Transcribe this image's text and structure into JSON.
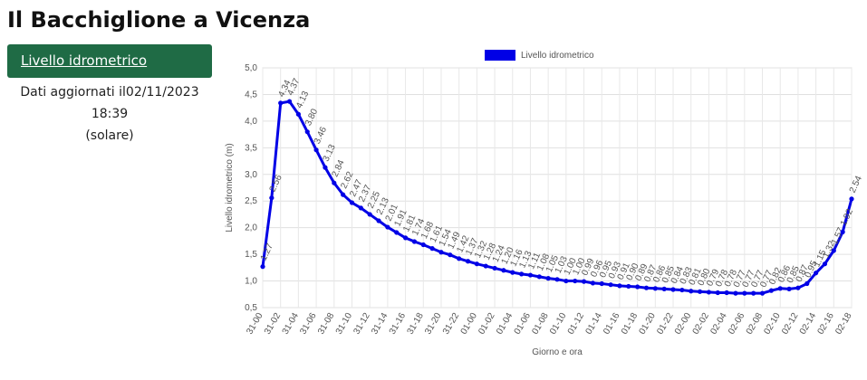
{
  "header": {
    "title": "Il Bacchiglione a Vicenza"
  },
  "sidebar": {
    "button": "Livello idrometrico",
    "updated": "Dati aggiornati il02/11/2023 18:39",
    "note": "(solare)"
  },
  "chart_data": {
    "type": "line",
    "xlabel": "Giorno e ora",
    "ylabel": "Livello idrometrico (m)",
    "legend": "top",
    "categories": [
      "31-00",
      null,
      "31-02",
      null,
      "31-04",
      null,
      "31-06",
      null,
      "31-08",
      null,
      "31-10",
      null,
      "31-12",
      null,
      "31-14",
      null,
      "31-16",
      null,
      "31-18",
      null,
      "31-20",
      null,
      "31-22",
      null,
      "01-00",
      null,
      "01-02",
      null,
      "01-04",
      null,
      "01-06",
      null,
      "01-08",
      null,
      "01-10",
      null,
      "01-12",
      null,
      "01-14",
      null,
      "01-16",
      null,
      "01-18",
      null,
      "01-20",
      null,
      "01-22",
      null,
      "02-00",
      null,
      "02-02",
      null,
      "02-04",
      null,
      "02-06",
      null,
      "02-08",
      null,
      "02-10",
      null,
      "02-12",
      null,
      "02-14",
      null,
      "02-16",
      null,
      "02-18"
    ],
    "series": [
      {
        "name": "Livello idrometrico",
        "color": "#0000e6",
        "values": [
          1.27,
          2.56,
          4.34,
          4.37,
          4.13,
          3.8,
          3.46,
          3.13,
          2.84,
          2.62,
          2.47,
          2.37,
          2.25,
          2.13,
          2.01,
          1.91,
          1.81,
          1.74,
          1.68,
          1.61,
          1.54,
          1.49,
          1.42,
          1.37,
          1.32,
          1.28,
          1.24,
          1.2,
          1.16,
          1.13,
          1.11,
          1.08,
          1.05,
          1.03,
          1,
          1,
          0.99,
          0.96,
          0.95,
          0.93,
          0.91,
          0.9,
          0.89,
          0.87,
          0.86,
          0.85,
          0.84,
          0.83,
          0.81,
          0.8,
          0.79,
          0.78,
          0.78,
          0.77,
          0.77,
          0.77,
          0.77,
          0.82,
          0.86,
          0.85,
          0.87,
          0.95,
          1.15,
          1.32,
          1.57,
          1.92,
          2.54
        ],
        "value_labels": [
          "1.27",
          "2.56",
          "4.34",
          "4.37",
          "4.13",
          "3.80",
          "3.46",
          "3.13",
          "2.84",
          "2.62",
          "2.47",
          "2.37",
          "2.25",
          "2.13",
          "2.01",
          "1.91",
          "1.81",
          "1.74",
          "1.68",
          "1.61",
          "1.54",
          "1.49",
          "1.42",
          "1.37",
          "1.32",
          "1.28",
          "1.24",
          "1.20",
          "1.16",
          "1.13",
          "1.11",
          "1.08",
          "1.05",
          "1.03",
          "1.00",
          "1.00",
          "0.99",
          "0.96",
          "0.95",
          "0.93",
          "0.91",
          "0.90",
          "0.89",
          "0.87",
          "0.86",
          "0.85",
          "0.84",
          "0.83",
          "0.81",
          "0.80",
          "0.79",
          "0.78",
          "0.78",
          "0.77",
          "0.77",
          "0.77",
          "0.77",
          "0.82",
          "0.86",
          "0.85",
          "0.87",
          "0.95",
          "1.15",
          "1.32",
          "1.57",
          "1.92",
          "2.54"
        ]
      }
    ],
    "ylim": [
      0.5,
      5
    ],
    "yticks": [
      {
        "value": 0.5,
        "label": "0,5"
      },
      {
        "value": 1,
        "label": "1,0"
      },
      {
        "value": 1.5,
        "label": "1,5"
      },
      {
        "value": 2,
        "label": "2,0"
      },
      {
        "value": 2.5,
        "label": "2,5"
      },
      {
        "value": 3,
        "label": "3,0"
      },
      {
        "value": 3.5,
        "label": "3,5"
      },
      {
        "value": 4,
        "label": "4,0"
      },
      {
        "value": 4.5,
        "label": "4,5"
      },
      {
        "value": 5,
        "label": "5,0"
      }
    ],
    "grid": true
  }
}
